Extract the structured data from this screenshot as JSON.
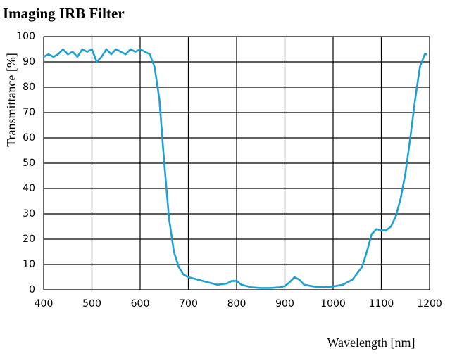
{
  "chart_data": {
    "type": "line",
    "title": "Imaging IRB Filter",
    "x_label": "Wavelength [nm]",
    "y_label": "Transmittance [%]",
    "xlim": [
      400,
      1200
    ],
    "ylim": [
      0,
      100
    ],
    "xticks": [
      400,
      500,
      600,
      700,
      800,
      900,
      1000,
      1100,
      1200
    ],
    "yticks": [
      0,
      10,
      20,
      30,
      40,
      50,
      60,
      70,
      80,
      90,
      100
    ],
    "grid": true,
    "x": [
      400,
      410,
      420,
      430,
      440,
      450,
      460,
      470,
      480,
      490,
      500,
      510,
      520,
      530,
      540,
      550,
      560,
      570,
      580,
      590,
      600,
      610,
      620,
      630,
      640,
      650,
      660,
      670,
      680,
      690,
      700,
      720,
      740,
      760,
      780,
      790,
      800,
      810,
      830,
      850,
      870,
      890,
      900,
      910,
      920,
      930,
      940,
      960,
      980,
      1000,
      1020,
      1040,
      1060,
      1070,
      1080,
      1090,
      1100,
      1110,
      1120,
      1130,
      1140,
      1150,
      1160,
      1170,
      1180,
      1190,
      1195
    ],
    "series": [
      {
        "name": "Transmittance",
        "color": "#1f9fd2",
        "values": [
          92,
          93,
          92,
          93,
          95,
          93,
          94,
          92,
          95,
          94,
          95,
          90,
          92,
          95,
          93,
          95,
          94,
          93,
          95,
          94,
          95,
          94,
          93,
          88,
          75,
          50,
          28,
          15,
          9,
          6,
          5,
          4,
          3,
          2,
          2.5,
          3.5,
          3.5,
          2,
          1,
          0.7,
          0.7,
          1,
          1.5,
          3,
          5,
          4,
          2,
          1.3,
          1,
          1.3,
          2,
          4,
          9,
          15,
          22,
          24,
          23.5,
          23.5,
          25,
          29,
          36,
          46,
          60,
          75,
          88,
          93,
          93
        ]
      }
    ]
  }
}
